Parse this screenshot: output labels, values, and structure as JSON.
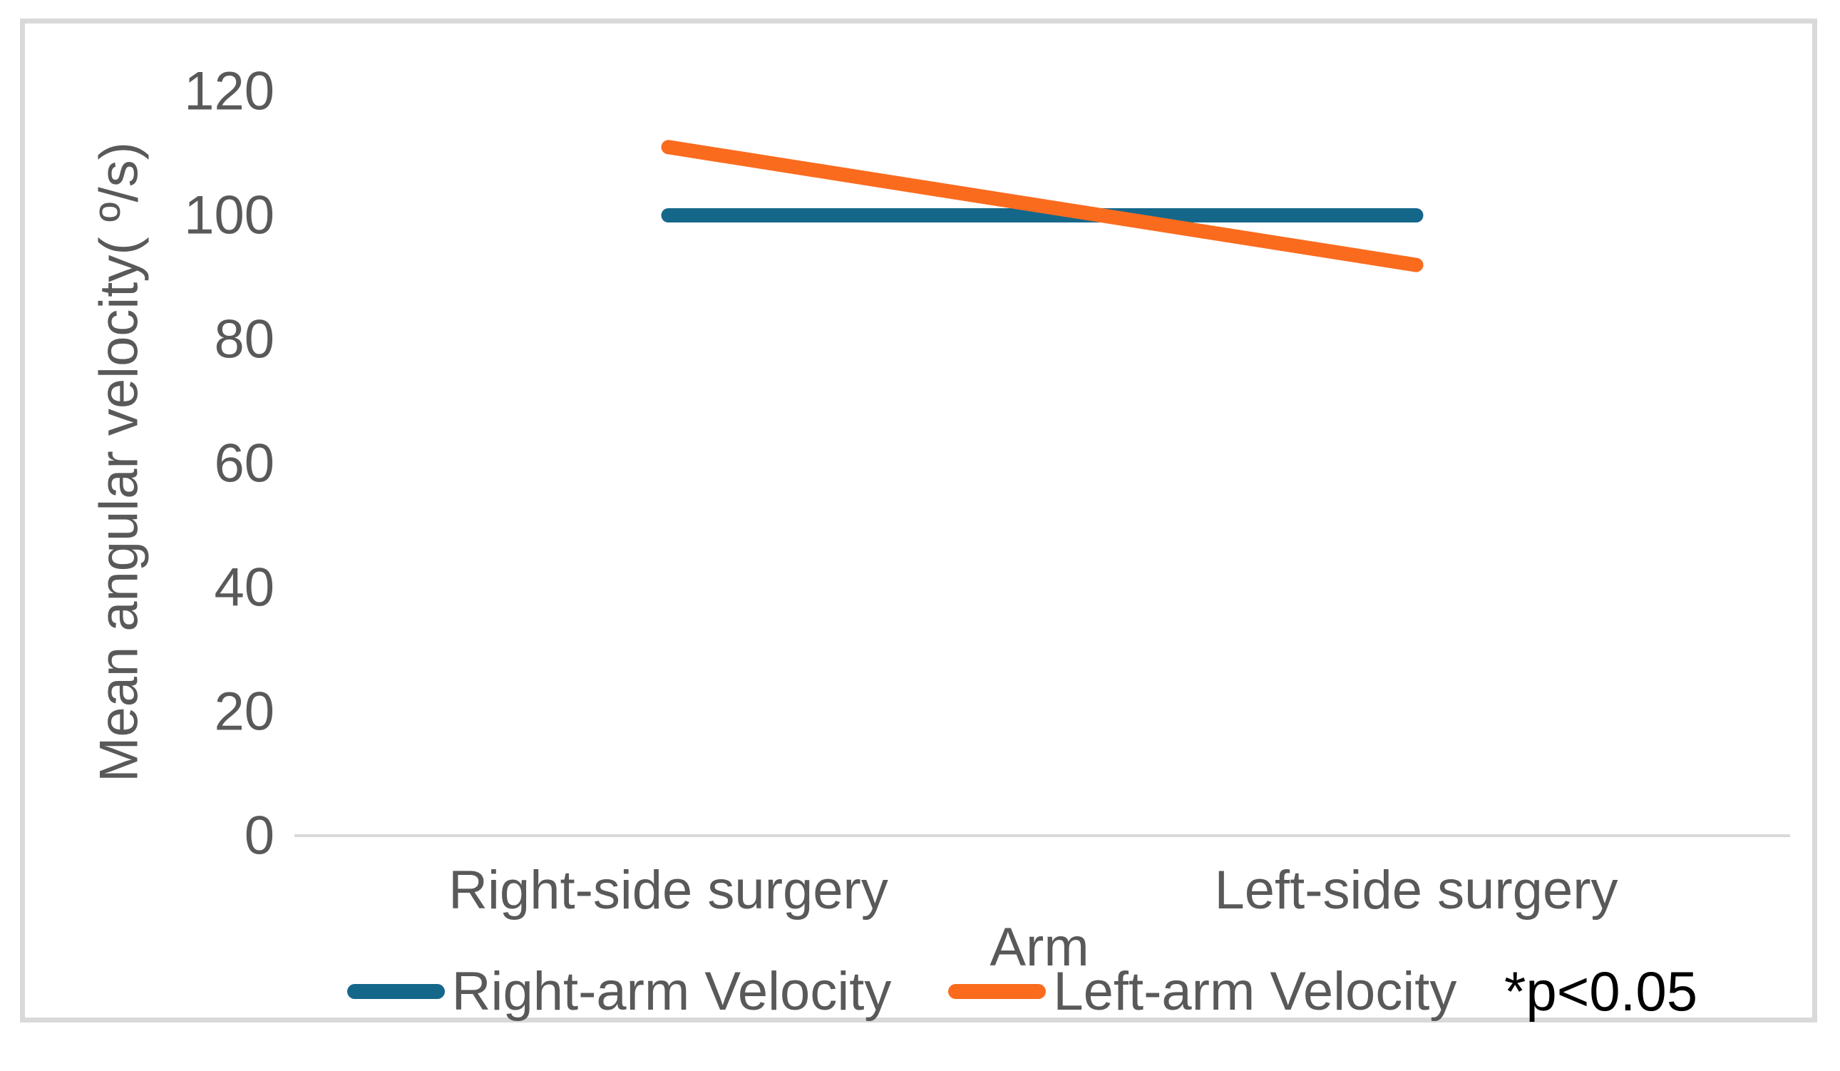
{
  "chart_data": {
    "type": "line",
    "categories": [
      "Right-side surgery",
      "Left-side surgery"
    ],
    "series": [
      {
        "name": "Right-arm Velocity",
        "color": "#15678A",
        "values": [
          100,
          100
        ]
      },
      {
        "name": "Left-arm Velocity",
        "color": "#FA6B1E",
        "values": [
          111,
          92
        ]
      }
    ],
    "title": "",
    "xlabel": "Arm",
    "ylabel": "Mean angular velocity( º/s)",
    "ylim": [
      0,
      120
    ],
    "yticks": [
      0,
      20,
      40,
      60,
      80,
      100,
      120
    ],
    "grid": false,
    "legend_position": "bottom",
    "annotation": "*p<0.05",
    "colors": {
      "tick_text": "#595959",
      "axis_line": "#D9D9D9",
      "frame_border": "#D9D9D9",
      "annotation_text": "#000000",
      "background": "#ffffff"
    }
  }
}
